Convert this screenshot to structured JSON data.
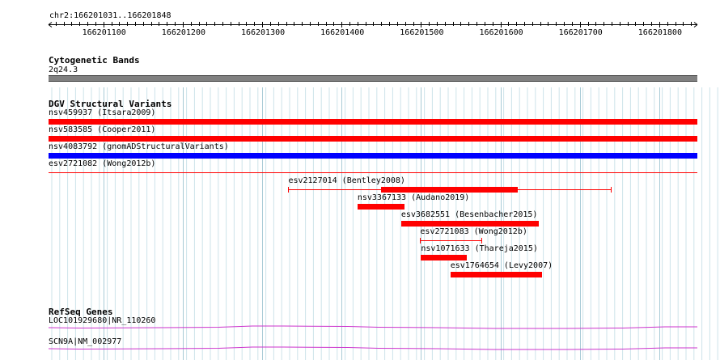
{
  "ruler": {
    "location": "chr2:166201031..166201848",
    "start": 166201031,
    "end": 166201848,
    "ticks": [
      "166201100",
      "166201200",
      "166201300",
      "166201400",
      "166201500",
      "166201600",
      "166201700",
      "166201800"
    ]
  },
  "cytoband": {
    "title": "Cytogenetic Bands",
    "band_label": "2q24.3"
  },
  "dgv": {
    "title": "DGV Structural Variants",
    "features": [
      {
        "label": "nsv459937 (Itsara2009)",
        "color": "#ff0000",
        "style": "full",
        "start": 166201031,
        "end": 166201848
      },
      {
        "label": "nsv583585 (Cooper2011)",
        "color": "#ff0000",
        "style": "full",
        "start": 166201031,
        "end": 166201848
      },
      {
        "label": "nsv4083792 (gnomADStructuralVariants)",
        "color": "#0000ff",
        "style": "full",
        "start": 166201031,
        "end": 166201848
      },
      {
        "label": "esv2721082 (Wong2012b)",
        "color": "#ff0000",
        "style": "line",
        "start": 166201031,
        "end": 166201848
      },
      {
        "label": "esv2127014 (Bentley2008)",
        "color": "#ff0000",
        "style": "line-block",
        "start": 166201333,
        "end": 166201740,
        "block_start": 166201450,
        "block_end": 166201622
      },
      {
        "label": "nsv3367133 (Audano2019)",
        "color": "#ff0000",
        "style": "full",
        "start": 166201420,
        "end": 166201479
      },
      {
        "label": "esv3682551 (Besenbacher2015)",
        "color": "#ff0000",
        "style": "full",
        "start": 166201475,
        "end": 166201648
      },
      {
        "label": "esv2721083 (Wong2012b)",
        "color": "#ff0000",
        "style": "line",
        "start": 166201499,
        "end": 166201577
      },
      {
        "label": "nsv1071633 (Thareja2015)",
        "color": "#ff0000",
        "style": "full",
        "start": 166201500,
        "end": 166201558
      },
      {
        "label": "esv1764654 (Levy2007)",
        "color": "#ff0000",
        "style": "full",
        "start": 166201537,
        "end": 166201652
      }
    ]
  },
  "refseq": {
    "title": "RefSeq Genes",
    "genes": [
      {
        "label": "LOC101929680|NR_110260",
        "color": "#cc33cc"
      },
      {
        "label": "SCN9A|NM_002977",
        "color": "#cc33cc"
      }
    ]
  }
}
